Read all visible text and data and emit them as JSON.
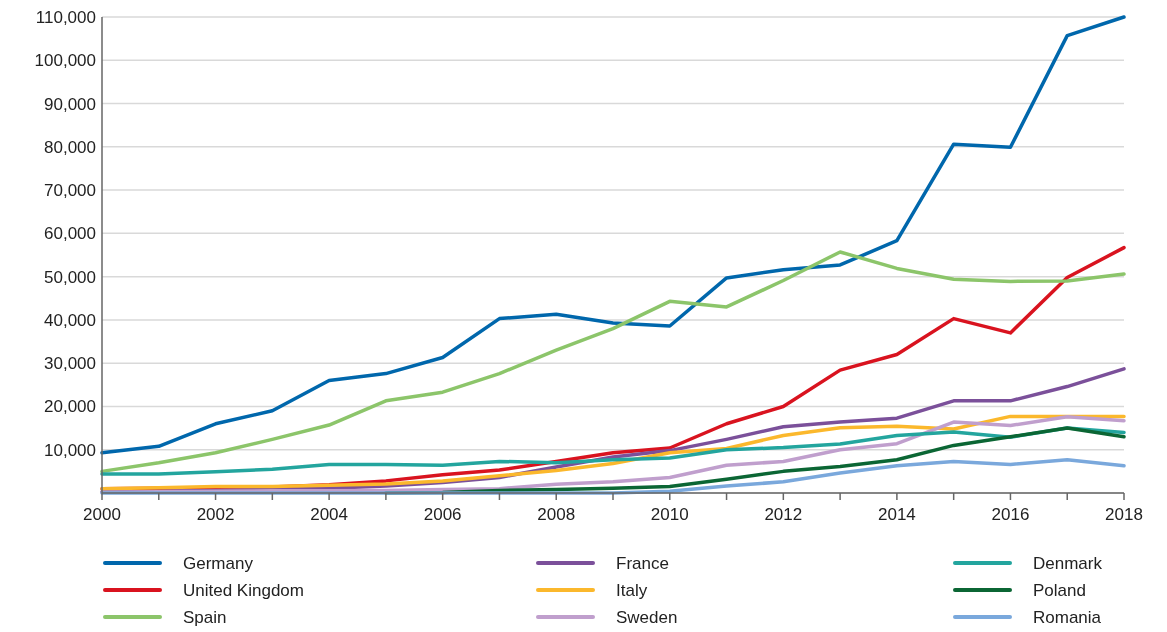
{
  "chart_data": {
    "type": "line",
    "x": [
      2000,
      2001,
      2002,
      2003,
      2004,
      2005,
      2006,
      2007,
      2008,
      2009,
      2010,
      2011,
      2012,
      2013,
      2014,
      2015,
      2016,
      2017,
      2018
    ],
    "xlim": [
      2000,
      2018
    ],
    "xticks": [
      2000,
      {
        "value": 2001,
        "label": null
      },
      2002,
      {
        "value": 2003,
        "label": null
      },
      2004,
      {
        "value": 2005,
        "label": null
      },
      2006,
      {
        "value": 2007,
        "label": null
      },
      2008,
      {
        "value": 2009,
        "label": null
      },
      2010,
      {
        "value": 2011,
        "label": null
      },
      2012,
      {
        "value": 2013,
        "label": null
      },
      2014,
      {
        "value": 2015,
        "label": null
      },
      2016,
      {
        "value": 2017,
        "label": null
      },
      2018
    ],
    "ylim": [
      0,
      110000
    ],
    "yticks": [
      {
        "value": 0,
        "label": null
      },
      {
        "value": 10000,
        "label": "10,000"
      },
      {
        "value": 20000,
        "label": "20,000"
      },
      {
        "value": 30000,
        "label": "30,000"
      },
      {
        "value": 40000,
        "label": "40,000"
      },
      {
        "value": 50000,
        "label": "50,000"
      },
      {
        "value": 60000,
        "label": "60,000"
      },
      {
        "value": 70000,
        "label": "70,000"
      },
      {
        "value": 80000,
        "label": "80,000"
      },
      {
        "value": 90000,
        "label": "90,000"
      },
      {
        "value": 100000,
        "label": "100,000"
      },
      {
        "value": 110000,
        "label": "110,000"
      }
    ],
    "grid": "y",
    "legend": "bottom",
    "marker": "none",
    "series": [
      {
        "name": "Germany",
        "color": "#0067ac",
        "values": [
          9300,
          10800,
          16000,
          19000,
          26000,
          27600,
          31300,
          40300,
          41300,
          39300,
          38600,
          49700,
          51600,
          52700,
          58300,
          80600,
          79900,
          105700,
          110000
        ]
      },
      {
        "name": "United Kingdom",
        "color": "#d9131f",
        "values": [
          1000,
          1100,
          1300,
          1400,
          1900,
          2800,
          4200,
          5300,
          7300,
          9300,
          10400,
          16000,
          20000,
          28400,
          32000,
          40300,
          37000,
          49800,
          56700
        ]
      },
      {
        "name": "Spain",
        "color": "#8cc56a",
        "values": [
          5000,
          7000,
          9300,
          12400,
          15700,
          21300,
          23300,
          27600,
          33000,
          38000,
          44300,
          43000,
          49100,
          55700,
          51900,
          49400,
          48900,
          49000,
          50600
        ]
      },
      {
        "name": "France",
        "color": "#7b509a",
        "values": [
          300,
          400,
          600,
          800,
          1100,
          1600,
          2400,
          3600,
          6000,
          8300,
          9800,
          12400,
          15300,
          16400,
          17300,
          21300,
          21300,
          24600,
          28700
        ]
      },
      {
        "name": "Italy",
        "color": "#fbb82c",
        "values": [
          1000,
          1200,
          1500,
          1500,
          1800,
          2100,
          2800,
          4000,
          5200,
          6800,
          9300,
          10300,
          13300,
          15100,
          15400,
          14800,
          17700,
          17700,
          17700
        ]
      },
      {
        "name": "Sweden",
        "color": "#c09fcd",
        "values": [
          200,
          300,
          400,
          500,
          500,
          600,
          800,
          1000,
          2000,
          2600,
          3600,
          6400,
          7300,
          10000,
          11400,
          16400,
          15600,
          17600,
          16700
        ]
      },
      {
        "name": "Denmark",
        "color": "#23a59e",
        "values": [
          4400,
          4400,
          4900,
          5500,
          6600,
          6600,
          6400,
          7300,
          7000,
          7700,
          8100,
          10000,
          10500,
          11300,
          13300,
          14100,
          12900,
          15000,
          14000
        ]
      },
      {
        "name": "Poland",
        "color": "#0b6634",
        "values": [
          null,
          null,
          null,
          null,
          null,
          0,
          100,
          600,
          800,
          1100,
          1500,
          3200,
          5000,
          6100,
          7700,
          11000,
          13000,
          15000,
          13000
        ]
      },
      {
        "name": "Romania",
        "color": "#7aa8dc",
        "values": [
          0,
          0,
          0,
          0,
          0,
          0,
          0,
          0,
          0,
          0,
          400,
          1600,
          2600,
          4600,
          6300,
          7300,
          6600,
          7700,
          6300
        ]
      }
    ]
  }
}
